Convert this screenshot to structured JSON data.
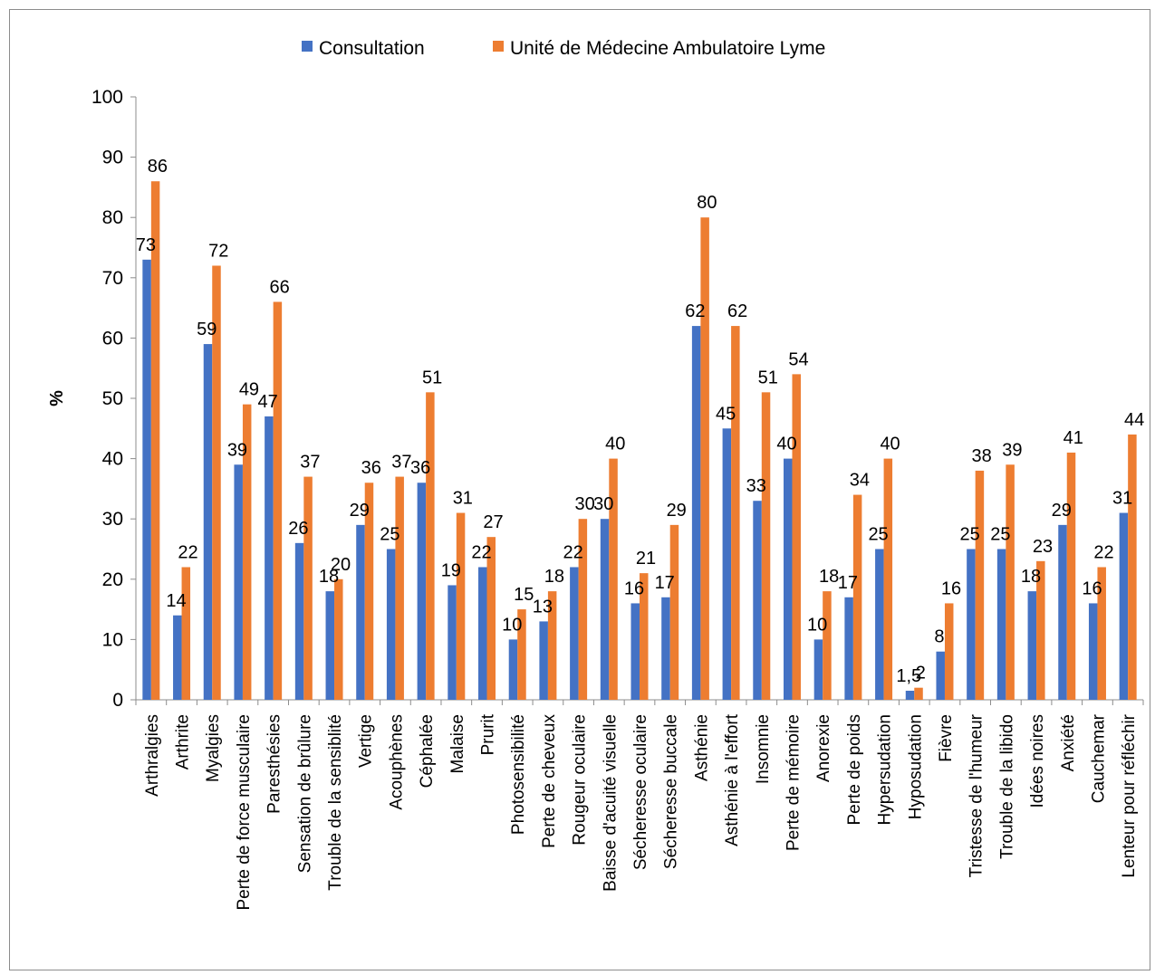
{
  "chart_data": {
    "type": "bar",
    "ylabel": "%",
    "ylim": [
      0,
      100
    ],
    "yticks": [
      0,
      10,
      20,
      30,
      40,
      50,
      60,
      70,
      80,
      90,
      100
    ],
    "legend_position": "top",
    "grid": false,
    "colors": {
      "Consultation": "#4472C4",
      "Unité de Médecine Ambulatoire Lyme": "#ED7D31"
    },
    "categories": [
      "Arthralgies",
      "Arthrite",
      "Myalgies",
      "Perte de force musculaire",
      "Paresthésies",
      "Sensation de brûlure",
      "Trouble de la sensiblité",
      "Vertige",
      "Acouphènes",
      "Céphalée",
      "Malaise",
      "Prurit",
      "Photosensibilité",
      "Perte de cheveux",
      "Rougeur oculaire",
      "Baisse d'acuité visuelle",
      "Sécheresse oculaire",
      "Sécheresse buccale",
      "Asthénie",
      "Asthénie à l'effort",
      "Insomnie",
      "Perte de mémoire",
      "Anorexie",
      "Perte de poids",
      "Hypersudation",
      "Hyposudation",
      "Fièvre",
      "Tristesse de l'humeur",
      "Trouble de la libido",
      "Idées noires",
      "Anxiété",
      "Cauchemar",
      "Lenteur pour réfléchir"
    ],
    "series": [
      {
        "name": "Consultation",
        "values": [
          73,
          14,
          59,
          39,
          47,
          26,
          18,
          29,
          25,
          36,
          19,
          22,
          10,
          13,
          22,
          30,
          16,
          17,
          62,
          45,
          33,
          40,
          10,
          17,
          25,
          1.5,
          8,
          25,
          25,
          18,
          29,
          16,
          31
        ],
        "labels": [
          "73",
          "14",
          "59",
          "39",
          "47",
          "26",
          "18",
          "29",
          "25",
          "36",
          "19",
          "22",
          "10",
          "13",
          "22",
          "30",
          "16",
          "17",
          "62",
          "45",
          "33",
          "40",
          "10",
          "17",
          "25",
          "1,5",
          "8",
          "25",
          "25",
          "18",
          "29",
          "16",
          "31"
        ]
      },
      {
        "name": "Unité de Médecine Ambulatoire Lyme",
        "values": [
          86,
          22,
          72,
          49,
          66,
          37,
          20,
          36,
          37,
          51,
          31,
          27,
          15,
          18,
          30,
          40,
          21,
          29,
          80,
          62,
          51,
          54,
          18,
          34,
          40,
          2,
          16,
          38,
          39,
          23,
          41,
          22,
          44
        ],
        "labels": [
          "86",
          "22",
          "72",
          "49",
          "66",
          "37",
          "20",
          "36",
          "37",
          "51",
          "31",
          "27",
          "15",
          "18",
          "30",
          "40",
          "21",
          "29",
          "80",
          "62",
          "51",
          "54",
          "18",
          "34",
          "40",
          "2",
          "16",
          "38",
          "39",
          "23",
          "41",
          "22",
          "44"
        ]
      }
    ]
  }
}
